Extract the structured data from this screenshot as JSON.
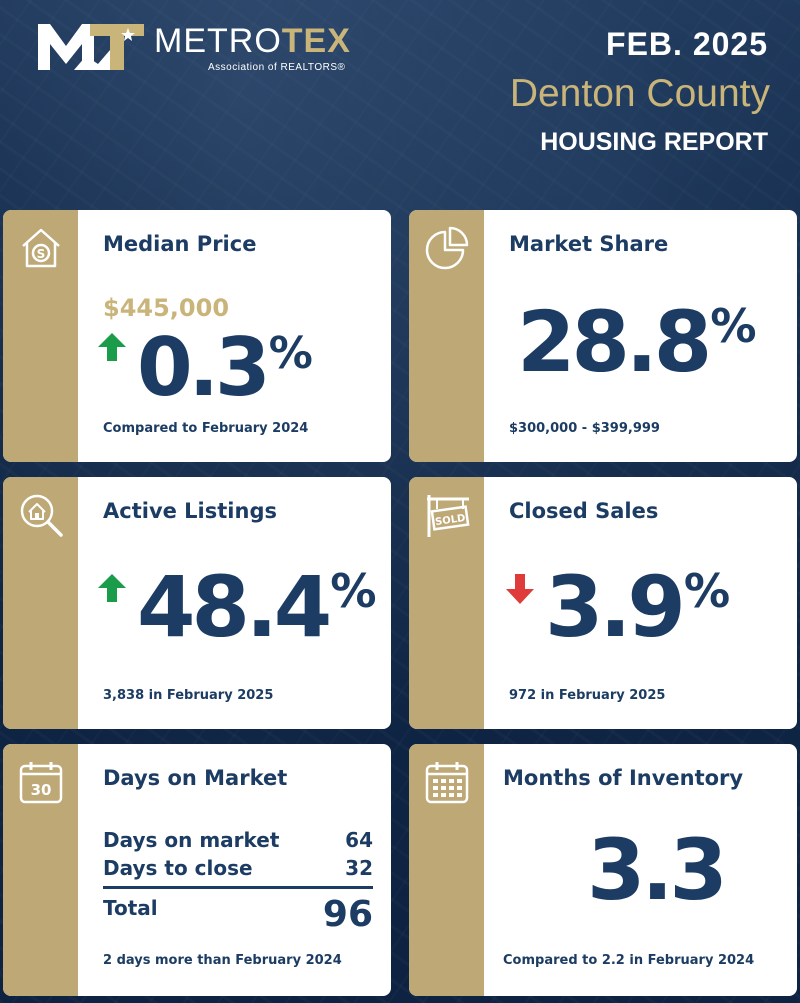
{
  "header": {
    "logo_text_metro": "METRO",
    "logo_text_tex": "TEX",
    "logo_sub": "Association of REALTORS®",
    "date": "FEB. 2025",
    "county": "Denton County",
    "report": "HOUSING REPORT"
  },
  "colors": {
    "navy": "#1c3c63",
    "gold": "#bda876",
    "gold_text": "#c9b47a",
    "up_green": "#1a9c4a",
    "down_red": "#e03b3b"
  },
  "cards": {
    "median_price": {
      "icon": "house-dollar-icon",
      "title": "Median Price",
      "price": "$445,000",
      "trend": "up",
      "value": "0.3",
      "unit": "%",
      "footer": "Compared to February 2024"
    },
    "market_share": {
      "icon": "pie-chart-icon",
      "title": "Market Share",
      "value": "28.8",
      "unit": "%",
      "footer": "$300,000 - $399,999"
    },
    "active_listings": {
      "icon": "house-search-icon",
      "title": "Active Listings",
      "trend": "up",
      "value": "48.4",
      "unit": "%",
      "footer": "3,838 in February 2025"
    },
    "closed_sales": {
      "icon": "sold-sign-icon",
      "title": "Closed Sales",
      "trend": "down",
      "value": "3.9",
      "unit": "%",
      "footer": "972 in February 2025"
    },
    "days_on_market": {
      "icon": "calendar-30-icon",
      "icon_text": "30",
      "title": "Days on Market",
      "rows": [
        {
          "label": "Days on market",
          "value": "64"
        },
        {
          "label": "Days to close",
          "value": "32"
        }
      ],
      "total_label": "Total",
      "total_value": "96",
      "footer": "2 days more than February 2024"
    },
    "months_inventory": {
      "icon": "calendar-grid-icon",
      "title": "Months of Inventory",
      "value": "3.3",
      "footer": "Compared to 2.2 in February 2024"
    }
  }
}
